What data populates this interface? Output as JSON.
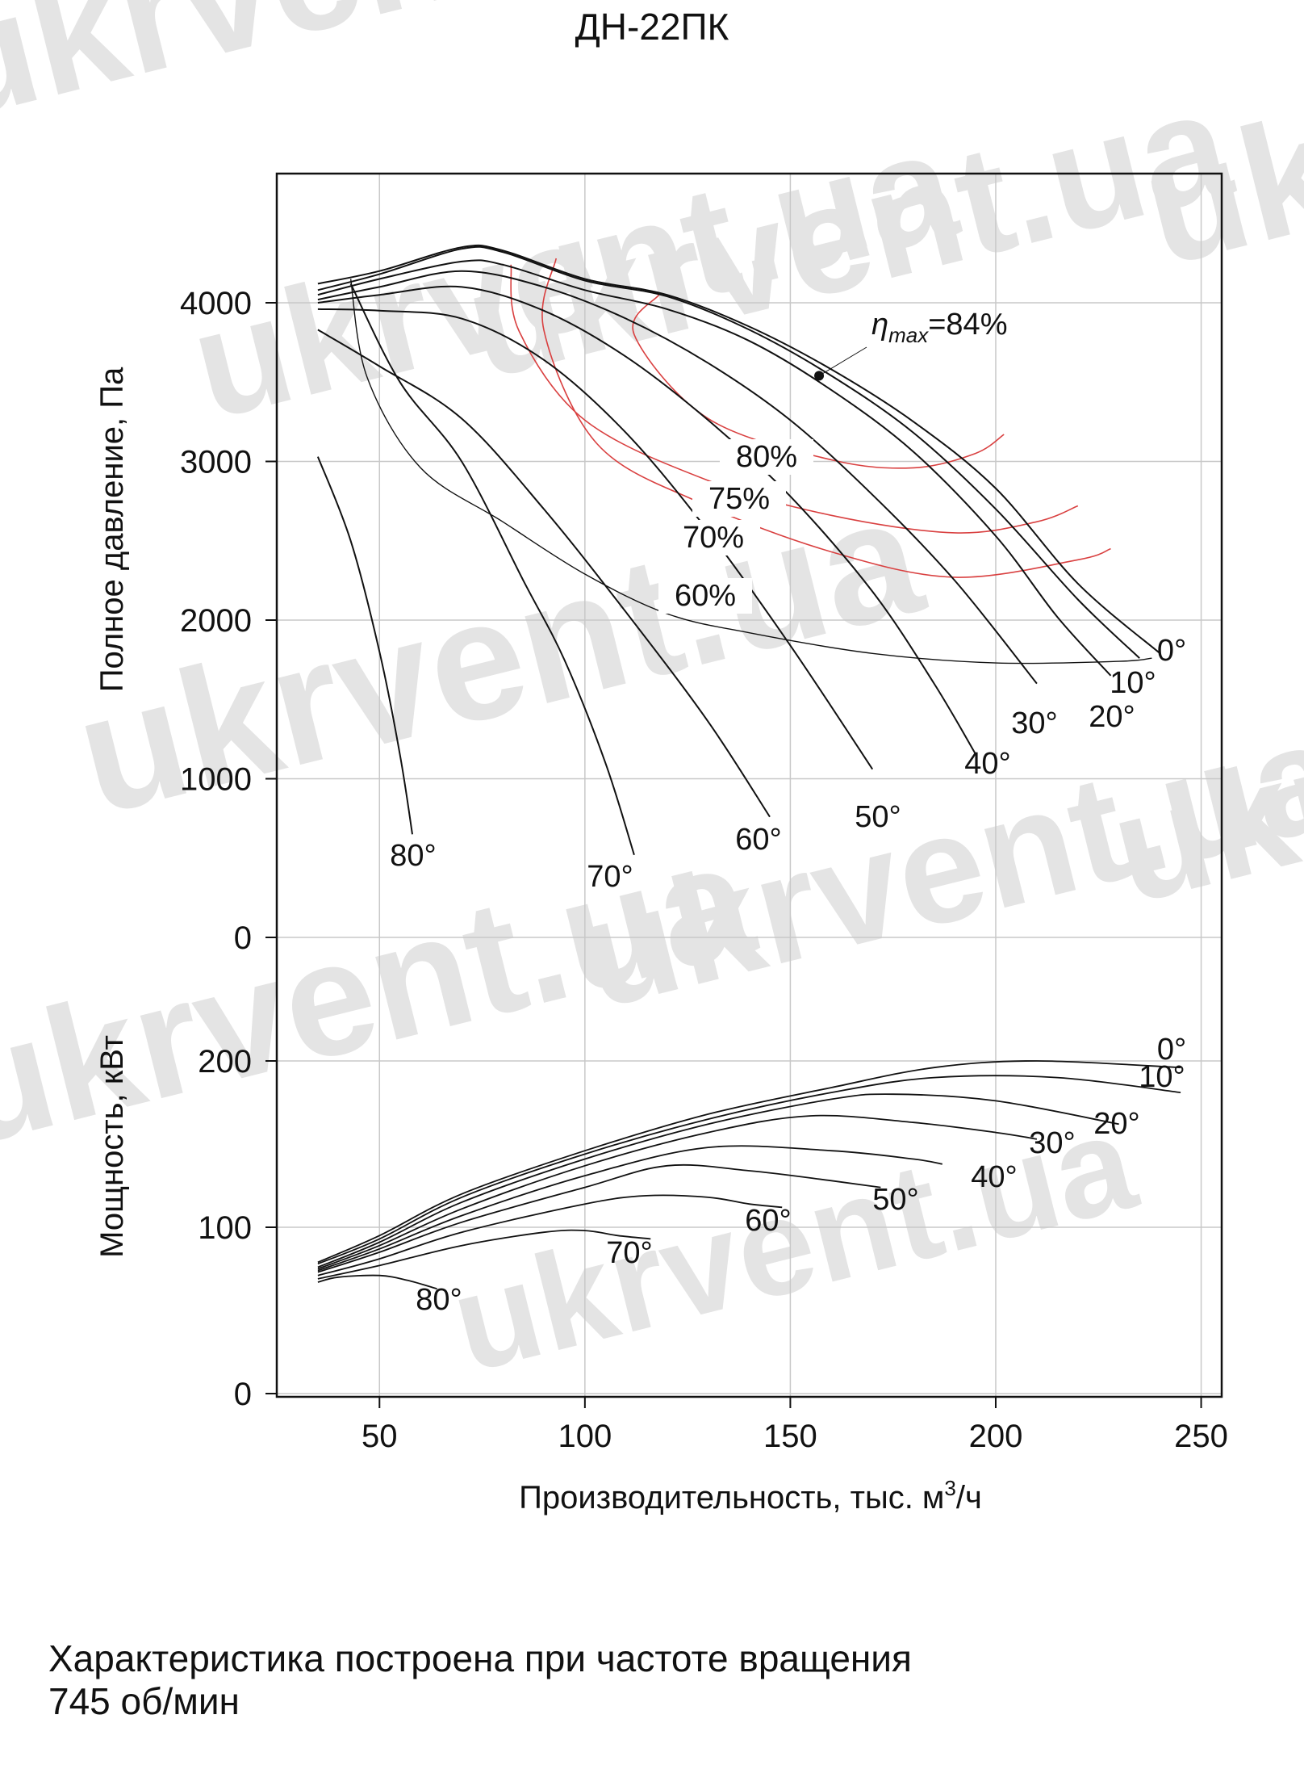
{
  "title": "ДН-22ПК",
  "footnote": {
    "line1": "Характеристика построена при частоте вращения",
    "line2": "745 об/мин"
  },
  "watermark": "ukrvent.ua",
  "colors": {
    "curve": "#111111",
    "efficiency": "#d94040",
    "grid": "#c8c8c8",
    "watermark": "#e4e4e4"
  },
  "chart_data": [
    {
      "type": "line",
      "panel": "pressure",
      "ylabel": "Полное давление, Па",
      "ylim": [
        0,
        4800
      ],
      "yticks": [
        0,
        1000,
        2000,
        3000,
        4000
      ],
      "grid": true,
      "series": [
        {
          "name": "0°",
          "points": [
            [
              35,
              4120
            ],
            [
              50,
              4200
            ],
            [
              70,
              4350
            ],
            [
              80,
              4330
            ],
            [
              100,
              4150
            ],
            [
              120,
              4050
            ],
            [
              140,
              3850
            ],
            [
              160,
              3580
            ],
            [
              180,
              3250
            ],
            [
              200,
              2830
            ],
            [
              220,
              2230
            ],
            [
              240,
              1790
            ]
          ]
        },
        {
          "name": "10°",
          "points": [
            [
              35,
              4080
            ],
            [
              50,
              4180
            ],
            [
              70,
              4340
            ],
            [
              80,
              4320
            ],
            [
              100,
              4140
            ],
            [
              120,
              4040
            ],
            [
              140,
              3830
            ],
            [
              160,
              3540
            ],
            [
              180,
              3180
            ],
            [
              200,
              2700
            ],
            [
              220,
              2130
            ],
            [
              235,
              1760
            ]
          ]
        },
        {
          "name": "20°",
          "points": [
            [
              35,
              4050
            ],
            [
              50,
              4150
            ],
            [
              70,
              4260
            ],
            [
              80,
              4240
            ],
            [
              100,
              4080
            ],
            [
              120,
              3960
            ],
            [
              140,
              3760
            ],
            [
              160,
              3450
            ],
            [
              180,
              3060
            ],
            [
              200,
              2530
            ],
            [
              215,
              2020
            ],
            [
              228,
              1650
            ]
          ]
        },
        {
          "name": "30°",
          "points": [
            [
              35,
              4020
            ],
            [
              50,
              4100
            ],
            [
              70,
              4200
            ],
            [
              90,
              4100
            ],
            [
              110,
              3900
            ],
            [
              130,
              3620
            ],
            [
              150,
              3260
            ],
            [
              170,
              2790
            ],
            [
              190,
              2250
            ],
            [
              210,
              1600
            ]
          ]
        },
        {
          "name": "40°",
          "points": [
            [
              35,
              4000
            ],
            [
              50,
              4050
            ],
            [
              70,
              4100
            ],
            [
              90,
              3950
            ],
            [
              110,
              3660
            ],
            [
              130,
              3260
            ],
            [
              150,
              2780
            ],
            [
              170,
              2180
            ],
            [
              185,
              1600
            ],
            [
              195,
              1160
            ]
          ]
        },
        {
          "name": "50°",
          "points": [
            [
              35,
              3960
            ],
            [
              50,
              3950
            ],
            [
              70,
              3900
            ],
            [
              90,
              3640
            ],
            [
              110,
              3180
            ],
            [
              130,
              2560
            ],
            [
              150,
              1840
            ],
            [
              170,
              1060
            ]
          ]
        },
        {
          "name": "60°",
          "points": [
            [
              35,
              3830
            ],
            [
              50,
              3600
            ],
            [
              70,
              3270
            ],
            [
              90,
              2700
            ],
            [
              110,
              2050
            ],
            [
              130,
              1360
            ],
            [
              145,
              760
            ]
          ]
        },
        {
          "name": "70°",
          "points": [
            [
              43,
              4120
            ],
            [
              55,
              3500
            ],
            [
              70,
              3000
            ],
            [
              85,
              2250
            ],
            [
              95,
              1750
            ],
            [
              105,
              1100
            ],
            [
              112,
              520
            ]
          ]
        },
        {
          "name": "80°",
          "points": [
            [
              35,
              3030
            ],
            [
              43,
              2500
            ],
            [
              50,
              1800
            ],
            [
              55,
              1150
            ],
            [
              58,
              650
            ]
          ]
        }
      ],
      "efficiency_curves": [
        {
          "name": "60%",
          "points": [
            [
              43,
              4150
            ],
            [
              47,
              3530
            ],
            [
              60,
              2960
            ],
            [
              80,
              2620
            ],
            [
              100,
              2290
            ],
            [
              120,
              2040
            ],
            [
              140,
              1920
            ],
            [
              170,
              1790
            ],
            [
              200,
              1730
            ],
            [
              230,
              1740
            ],
            [
              238,
              1760
            ]
          ]
        },
        {
          "name": "70%",
          "points": [
            [
              93,
              4280
            ],
            [
              90,
              3830
            ],
            [
              103,
              3110
            ],
            [
              128,
              2740
            ],
            [
              160,
              2430
            ],
            [
              190,
              2270
            ],
            [
              220,
              2380
            ],
            [
              228,
              2450
            ]
          ]
        },
        {
          "name": "75%",
          "points": [
            [
              82,
              4240
            ],
            [
              84,
              3820
            ],
            [
              100,
              3260
            ],
            [
              130,
              2880
            ],
            [
              160,
              2660
            ],
            [
              190,
              2550
            ],
            [
              210,
              2620
            ],
            [
              220,
              2720
            ]
          ]
        },
        {
          "name": "80%",
          "points": [
            [
              118,
              4050
            ],
            [
              112,
              3800
            ],
            [
              130,
              3270
            ],
            [
              160,
              3010
            ],
            [
              180,
              2960
            ],
            [
              195,
              3050
            ],
            [
              202,
              3170
            ]
          ]
        }
      ],
      "annotations": [
        {
          "text": "ηmax=84%",
          "point": [
            157,
            3540
          ]
        }
      ]
    },
    {
      "type": "line",
      "panel": "power",
      "xlabel": "Производительность, тыс. м3/ч",
      "ylabel": "Мощность, кВт",
      "xlim": [
        25,
        255
      ],
      "xticks": [
        50,
        100,
        150,
        200,
        250
      ],
      "ylim": [
        0,
        230
      ],
      "yticks": [
        0,
        100,
        200
      ],
      "grid": true,
      "series": [
        {
          "name": "0°",
          "points": [
            [
              35,
              79
            ],
            [
              50,
              95
            ],
            [
              70,
              120
            ],
            [
              100,
              146
            ],
            [
              130,
              168
            ],
            [
              160,
              184
            ],
            [
              185,
              196
            ],
            [
              210,
              200
            ],
            [
              245,
              196
            ]
          ]
        },
        {
          "name": "10°",
          "points": [
            [
              35,
              78
            ],
            [
              50,
              93
            ],
            [
              70,
              118
            ],
            [
              100,
              144
            ],
            [
              130,
              165
            ],
            [
              160,
              181
            ],
            [
              185,
              190
            ],
            [
              215,
              190
            ],
            [
              245,
              181
            ]
          ]
        },
        {
          "name": "20°",
          "points": [
            [
              35,
              76
            ],
            [
              50,
              91
            ],
            [
              70,
              115
            ],
            [
              100,
              141
            ],
            [
              130,
              162
            ],
            [
              160,
              177
            ],
            [
              175,
              180
            ],
            [
              200,
              176
            ],
            [
              230,
              162
            ]
          ]
        },
        {
          "name": "30°",
          "points": [
            [
              35,
              75
            ],
            [
              50,
              89
            ],
            [
              70,
              111
            ],
            [
              100,
              137
            ],
            [
              130,
              157
            ],
            [
              155,
              167
            ],
            [
              180,
              163
            ],
            [
              200,
              157
            ],
            [
              210,
              153
            ]
          ]
        },
        {
          "name": "40°",
          "points": [
            [
              35,
              74
            ],
            [
              50,
              87
            ],
            [
              70,
              107
            ],
            [
              100,
              131
            ],
            [
              130,
              148
            ],
            [
              160,
              146
            ],
            [
              180,
              141
            ],
            [
              187,
              138
            ]
          ]
        },
        {
          "name": "50°",
          "points": [
            [
              35,
              73
            ],
            [
              50,
              85
            ],
            [
              70,
              103
            ],
            [
              100,
              124
            ],
            [
              120,
              137
            ],
            [
              140,
              134
            ],
            [
              160,
              128
            ],
            [
              172,
              124
            ]
          ]
        },
        {
          "name": "60°",
          "points": [
            [
              35,
              71
            ],
            [
              50,
              81
            ],
            [
              70,
              97
            ],
            [
              100,
              114
            ],
            [
              115,
              119
            ],
            [
              130,
              118
            ],
            [
              140,
              114
            ],
            [
              148,
              112
            ]
          ]
        },
        {
          "name": "70°",
          "points": [
            [
              35,
              69
            ],
            [
              50,
              77
            ],
            [
              70,
              89
            ],
            [
              90,
              97
            ],
            [
              100,
              98
            ],
            [
              108,
              95
            ],
            [
              116,
              93
            ]
          ]
        },
        {
          "name": "80°",
          "points": [
            [
              35,
              67
            ],
            [
              40,
              70
            ],
            [
              50,
              71
            ],
            [
              57,
              68
            ],
            [
              64,
              63
            ]
          ]
        }
      ]
    }
  ]
}
